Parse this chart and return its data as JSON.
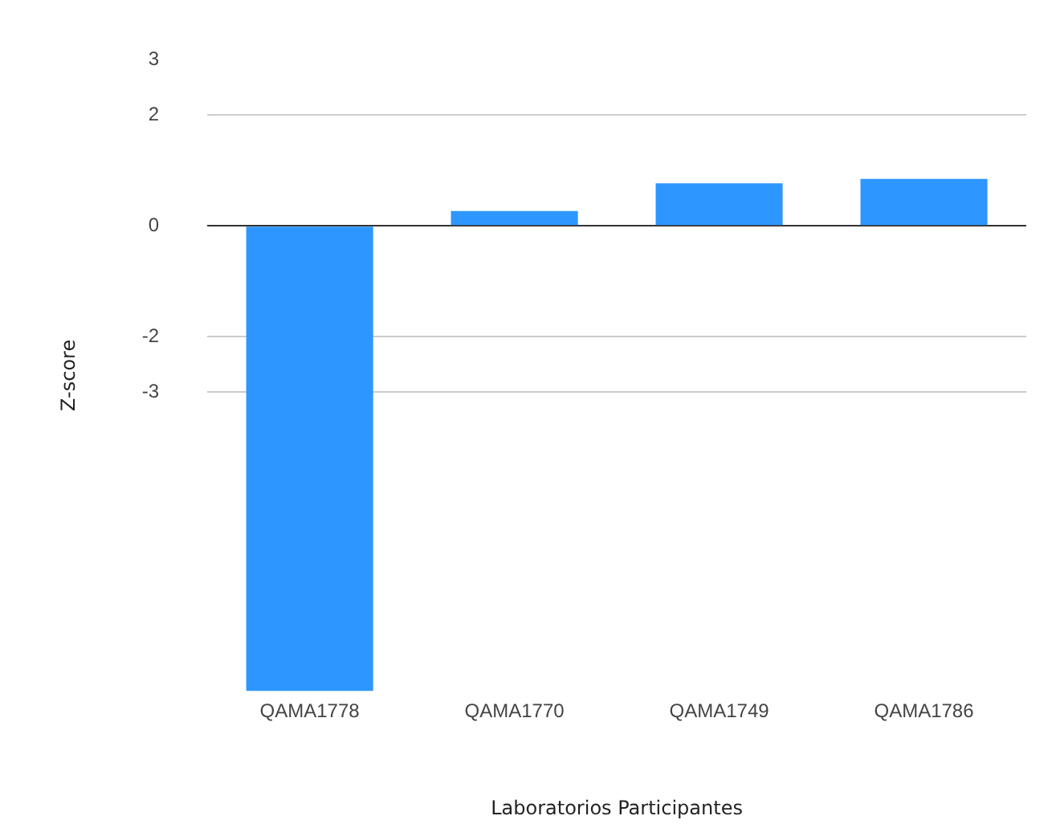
{
  "chart_data": {
    "type": "bar",
    "xlabel": "Laboratorios Participantes",
    "ylabel": "Z-score",
    "categories": [
      "QAMA1778",
      "QAMA1770",
      "QAMA1749",
      "QAMA1786"
    ],
    "values": [
      -8.4,
      0.27,
      0.77,
      0.85
    ],
    "color": "#2e96ff",
    "ylim": [
      -8.4,
      3
    ],
    "yticks": [
      3,
      2,
      0,
      -2,
      -3
    ],
    "grid": "y",
    "legend": false
  }
}
